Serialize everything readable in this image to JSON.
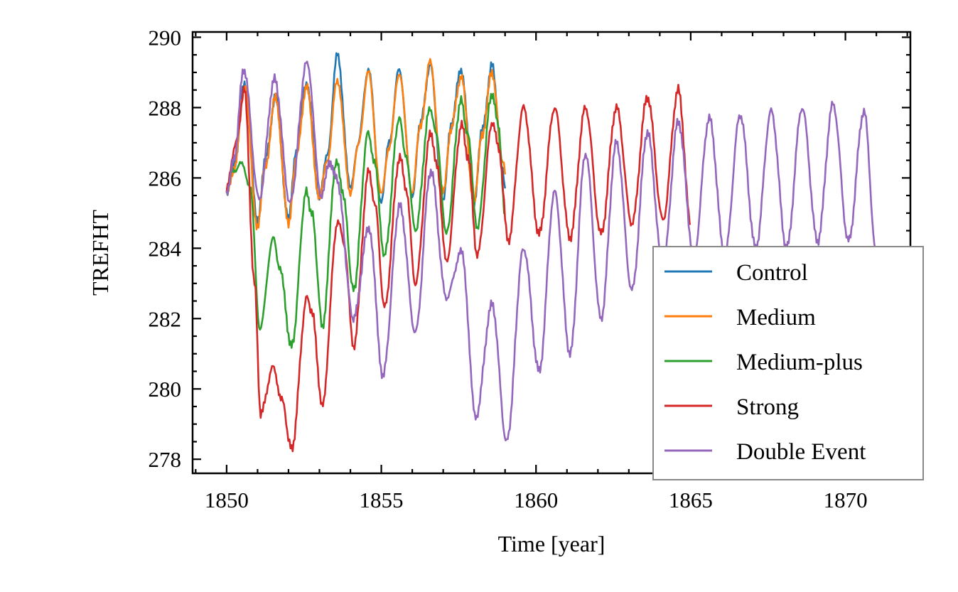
{
  "chart_data": {
    "type": "line",
    "xlabel": "Time [year]",
    "ylabel": "TREFHT",
    "xlim": [
      1848.9,
      1872.1
    ],
    "ylim": [
      277.6,
      290.15
    ],
    "xticks": [
      1850,
      1855,
      1860,
      1865,
      1870
    ],
    "yticks": [
      278,
      280,
      282,
      284,
      286,
      288,
      290
    ],
    "grid": false,
    "legend": "lower-right",
    "series": [
      {
        "name": "Control",
        "color": "#1f77b4",
        "x": [
          1850.0,
          1850.25,
          1850.58,
          1851.0,
          1851.25,
          1851.58,
          1852.0,
          1852.25,
          1852.58,
          1853.0,
          1853.25,
          1853.58,
          1854.0,
          1854.25,
          1854.58,
          1855.0,
          1855.25,
          1855.58,
          1856.0,
          1856.25,
          1856.58,
          1857.0,
          1857.25,
          1857.58,
          1858.0,
          1858.25,
          1858.58,
          1858.92,
          1859.0
        ],
        "y": [
          285.6,
          286.4,
          288.7,
          284.8,
          286.5,
          288.3,
          284.8,
          286.8,
          288.7,
          285.5,
          286.6,
          289.5,
          285.7,
          287.0,
          289.1,
          285.3,
          287.0,
          289.1,
          285.5,
          287.5,
          289.2,
          285.3,
          287.5,
          289.1,
          285.3,
          287.3,
          289.2,
          286.3,
          285.7
        ]
      },
      {
        "name": "Medium",
        "color": "#ff7f0e",
        "x": [
          1850.0,
          1850.25,
          1850.58,
          1851.0,
          1851.25,
          1851.58,
          1852.0,
          1852.25,
          1852.58,
          1853.0,
          1853.25,
          1853.58,
          1854.0,
          1854.25,
          1854.58,
          1855.0,
          1855.25,
          1855.58,
          1856.0,
          1856.25,
          1856.58,
          1857.0,
          1857.25,
          1857.58,
          1858.0,
          1858.25,
          1858.58,
          1858.92,
          1859.0
        ],
        "y": [
          285.6,
          286.3,
          288.6,
          284.6,
          286.3,
          288.3,
          284.7,
          286.6,
          288.6,
          285.4,
          286.5,
          288.8,
          285.6,
          286.9,
          289.0,
          285.5,
          286.9,
          289.0,
          285.6,
          287.4,
          289.3,
          285.6,
          287.4,
          288.9,
          285.3,
          287.2,
          289.0,
          286.5,
          286.1
        ]
      },
      {
        "name": "Medium-plus",
        "color": "#2ca02c",
        "x": [
          1850.0,
          1850.2,
          1850.5,
          1850.75,
          1851.08,
          1851.5,
          1851.7,
          1852.1,
          1852.58,
          1852.75,
          1853.1,
          1853.55,
          1853.75,
          1854.1,
          1854.58,
          1854.78,
          1855.1,
          1855.58,
          1855.78,
          1856.1,
          1856.58,
          1856.78,
          1857.1,
          1857.58,
          1857.78,
          1858.1,
          1858.58,
          1858.78,
          1859.0
        ],
        "y": [
          285.6,
          286.2,
          286.4,
          285.8,
          281.7,
          284.3,
          283.5,
          281.2,
          285.6,
          285.0,
          281.8,
          286.5,
          285.6,
          282.8,
          287.3,
          286.4,
          283.8,
          287.7,
          286.7,
          284.5,
          288.0,
          287.2,
          284.4,
          288.2,
          287.3,
          284.6,
          288.4,
          287.5,
          285.0
        ]
      },
      {
        "name": "Strong",
        "color": "#d62728",
        "x": [
          1850.0,
          1850.3,
          1850.58,
          1850.9,
          1851.1,
          1851.5,
          1851.75,
          1852.1,
          1852.6,
          1852.78,
          1853.08,
          1853.6,
          1853.8,
          1854.1,
          1854.6,
          1854.8,
          1855.1,
          1855.6,
          1855.8,
          1856.1,
          1856.6,
          1856.8,
          1857.1,
          1857.6,
          1857.8,
          1858.1,
          1858.6,
          1858.8,
          1859.1,
          1859.6,
          1860.1,
          1860.6,
          1861.1,
          1861.6,
          1862.1,
          1862.6,
          1863.1,
          1863.6,
          1864.1,
          1864.6,
          1865.0
        ],
        "y": [
          285.7,
          287.0,
          288.5,
          283.0,
          279.3,
          280.6,
          279.8,
          278.3,
          282.6,
          282.1,
          279.5,
          284.8,
          284.1,
          281.2,
          286.2,
          285.2,
          282.3,
          286.6,
          285.7,
          283.0,
          287.3,
          286.3,
          283.6,
          287.5,
          286.6,
          283.8,
          287.6,
          286.8,
          284.2,
          288.0,
          284.4,
          288.0,
          284.3,
          288.0,
          284.4,
          288.0,
          284.7,
          288.3,
          284.8,
          288.5,
          284.7
        ]
      },
      {
        "name": "Double Event",
        "color": "#9467bd",
        "x": [
          1850.0,
          1850.25,
          1850.55,
          1851.05,
          1851.55,
          1852.05,
          1852.6,
          1853.05,
          1853.3,
          1853.55,
          1854.1,
          1854.6,
          1855.05,
          1855.6,
          1856.1,
          1856.6,
          1857.1,
          1857.6,
          1858.05,
          1858.58,
          1859.05,
          1859.6,
          1860.1,
          1860.6,
          1861.1,
          1861.6,
          1862.1,
          1862.6,
          1863.1,
          1863.6,
          1864.1,
          1864.6,
          1865.1,
          1865.6,
          1866.1,
          1866.6,
          1867.1,
          1867.6,
          1868.1,
          1868.6,
          1869.1,
          1869.6,
          1870.1,
          1870.6,
          1871.0
        ],
        "y": [
          285.5,
          286.6,
          289.1,
          285.4,
          288.8,
          285.3,
          289.3,
          285.5,
          286.4,
          286.0,
          282.0,
          284.6,
          280.4,
          285.2,
          281.6,
          286.2,
          282.6,
          283.9,
          279.2,
          282.4,
          278.5,
          284.0,
          280.5,
          285.6,
          281.0,
          286.7,
          282.0,
          287.0,
          282.8,
          287.3,
          283.5,
          287.6,
          283.8,
          287.7,
          283.8,
          287.8,
          284.0,
          287.9,
          284.0,
          288.0,
          284.2,
          288.1,
          284.2,
          287.9,
          283.8
        ]
      }
    ]
  }
}
